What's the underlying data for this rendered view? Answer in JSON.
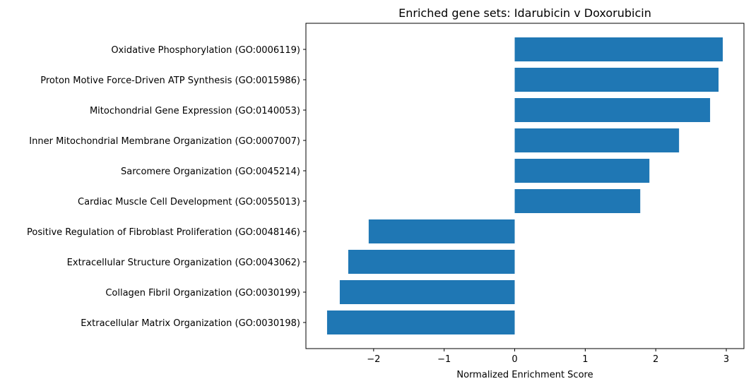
{
  "chart_data": {
    "type": "bar",
    "orientation": "horizontal",
    "title": "Enriched gene sets: Idarubicin v Doxorubicin",
    "xlabel": "Normalized Enrichment Score",
    "ylabel": "",
    "categories": [
      "Oxidative Phosphorylation (GO:0006119)",
      "Proton Motive Force-Driven ATP Synthesis (GO:0015986)",
      "Mitochondrial Gene Expression (GO:0140053)",
      "Inner Mitochondrial Membrane Organization (GO:0007007)",
      "Sarcomere Organization (GO:0045214)",
      "Cardiac Muscle Cell Development (GO:0055013)",
      "Positive Regulation of Fibroblast Proliferation (GO:0048146)",
      "Extracellular Structure Organization (GO:0043062)",
      "Collagen Fibril Organization (GO:0030199)",
      "Extracellular Matrix Organization (GO:0030198)"
    ],
    "values": [
      2.95,
      2.89,
      2.77,
      2.33,
      1.91,
      1.78,
      -2.07,
      -2.36,
      -2.48,
      -2.66
    ],
    "xlim": [
      -2.96,
      3.25
    ],
    "xticks": [
      -2,
      -1,
      0,
      1,
      2,
      3
    ],
    "xtick_labels": [
      "−2",
      "−1",
      "0",
      "1",
      "2",
      "3"
    ],
    "bar_color": "#1f77b4",
    "grid": false,
    "legend": "none"
  }
}
